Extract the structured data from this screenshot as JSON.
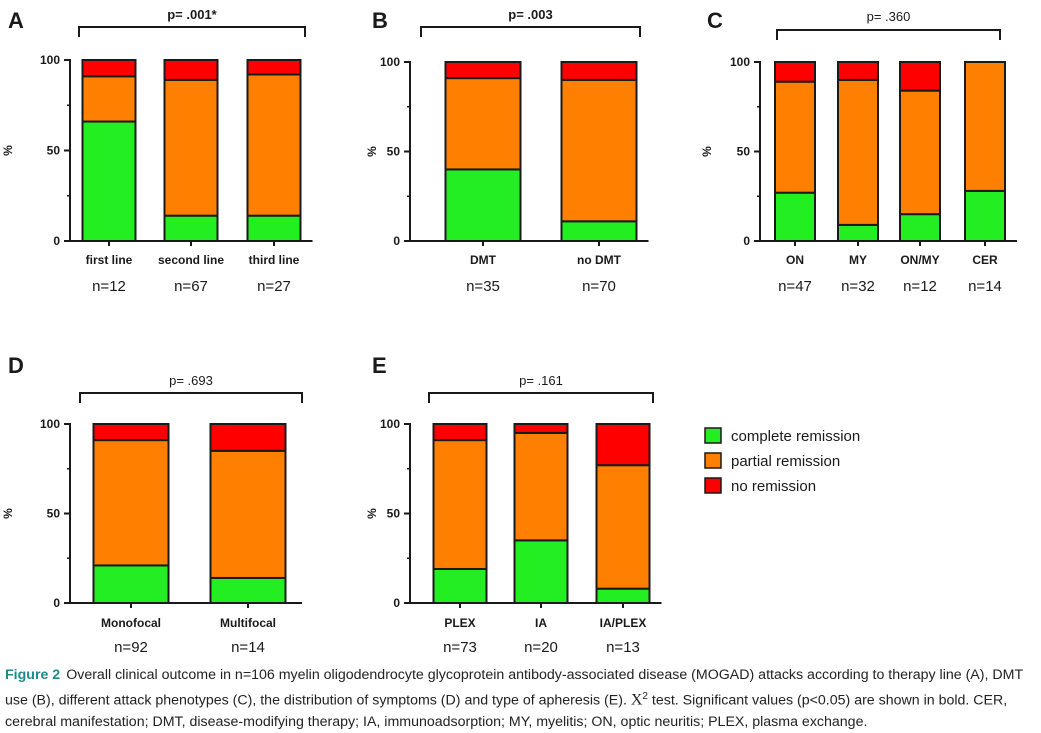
{
  "chart_data": [
    {
      "id": "A",
      "letter": "A",
      "type": "bar",
      "stacked": true,
      "pvalue": "p= .001*",
      "pvalue_bold": true,
      "categories": [
        "first line",
        "second line",
        "third line"
      ],
      "n_labels": [
        "n=12",
        "n=67",
        "n=27"
      ],
      "series": [
        {
          "name": "complete remission",
          "values": [
            66,
            14,
            14
          ]
        },
        {
          "name": "partial remission",
          "values": [
            25,
            75,
            78
          ]
        },
        {
          "name": "no remission",
          "values": [
            9,
            11,
            8
          ]
        }
      ],
      "ylabel": "%",
      "ylim": [
        0,
        100
      ],
      "yticks": [
        "0",
        "50",
        "100"
      ]
    },
    {
      "id": "B",
      "letter": "B",
      "type": "bar",
      "stacked": true,
      "pvalue": "p= .003",
      "pvalue_bold": true,
      "categories": [
        "DMT",
        "no DMT"
      ],
      "n_labels": [
        "n=35",
        "n=70"
      ],
      "series": [
        {
          "name": "complete remission",
          "values": [
            40,
            11
          ]
        },
        {
          "name": "partial remission",
          "values": [
            51,
            79
          ]
        },
        {
          "name": "no remission",
          "values": [
            9,
            10
          ]
        }
      ],
      "ylabel": "%",
      "ylim": [
        0,
        100
      ],
      "yticks": [
        "0",
        "50",
        "100"
      ]
    },
    {
      "id": "C",
      "letter": "C",
      "type": "bar",
      "stacked": true,
      "pvalue": "p= .360",
      "pvalue_bold": false,
      "categories": [
        "ON",
        "MY",
        "ON/MY",
        "CER"
      ],
      "n_labels": [
        "n=47",
        "n=32",
        "n=12",
        "n=14"
      ],
      "series": [
        {
          "name": "complete remission",
          "values": [
            27,
            9,
            15,
            28
          ]
        },
        {
          "name": "partial remission",
          "values": [
            62,
            81,
            69,
            72
          ]
        },
        {
          "name": "no remission",
          "values": [
            11,
            10,
            16,
            0
          ]
        }
      ],
      "ylabel": "%",
      "ylim": [
        0,
        100
      ],
      "yticks": [
        "0",
        "50",
        "100"
      ]
    },
    {
      "id": "D",
      "letter": "D",
      "type": "bar",
      "stacked": true,
      "pvalue": "p= .693",
      "pvalue_bold": false,
      "categories": [
        "Monofocal",
        "Multifocal"
      ],
      "n_labels": [
        "n=92",
        "n=14"
      ],
      "series": [
        {
          "name": "complete remission",
          "values": [
            21,
            14
          ]
        },
        {
          "name": "partial remission",
          "values": [
            70,
            71
          ]
        },
        {
          "name": "no remission",
          "values": [
            9,
            15
          ]
        }
      ],
      "ylabel": "%",
      "ylim": [
        0,
        100
      ],
      "yticks": [
        "0",
        "50",
        "100"
      ]
    },
    {
      "id": "E",
      "letter": "E",
      "type": "bar",
      "stacked": true,
      "pvalue": "p= .161",
      "pvalue_bold": false,
      "categories": [
        "PLEX",
        "IA",
        "IA/PLEX"
      ],
      "n_labels": [
        "n=73",
        "n=20",
        "n=13"
      ],
      "series": [
        {
          "name": "complete remission",
          "values": [
            19,
            35,
            8
          ]
        },
        {
          "name": "partial remission",
          "values": [
            72,
            60,
            69
          ]
        },
        {
          "name": "no remission",
          "values": [
            9,
            5,
            23
          ]
        }
      ],
      "ylabel": "%",
      "ylim": [
        0,
        100
      ],
      "yticks": [
        "0",
        "50",
        "100"
      ]
    }
  ],
  "legend": {
    "placement": "right",
    "items": [
      {
        "label": "complete remission",
        "color": "#22ee22"
      },
      {
        "label": "partial remission",
        "color": "#ff8000"
      },
      {
        "label": "no remission",
        "color": "#ff0000"
      }
    ]
  },
  "colors": {
    "complete": "#22ee22",
    "partial": "#ff8000",
    "none": "#ff0000",
    "caption_title": "#1e8a8a"
  },
  "caption": {
    "title": "Figure 2",
    "text_before": "Overall clinical outcome in n=106 myelin oligodendrocyte glycoprotein antibody-associated disease (MOGAD) attacks according to therapy line (A), DMT use (B), different attack phenotypes (C), the distribution of symptoms (D) and type of apheresis (E). ",
    "chi": "X",
    "chi_sup": "2",
    "text_after": " test. Significant values (p<0.05) are shown in bold. CER, cerebral manifestation; DMT, disease-modifying therapy; IA, immunoadsorption; MY, myelitis; ON, optic neuritis; PLEX, plasma exchange."
  }
}
